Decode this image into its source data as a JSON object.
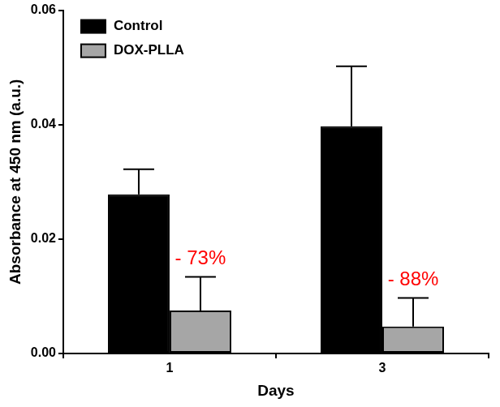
{
  "chart_data": {
    "type": "bar",
    "x_label": "Days",
    "y_label": "Absorbance at 450 nm (a.u.)",
    "categories": [
      "1",
      "3"
    ],
    "series": [
      {
        "name": "Control",
        "color": "#000000",
        "values": [
          0.0278,
          0.0397
        ],
        "errors": [
          0.0044,
          0.0105
        ]
      },
      {
        "name": "DOX-PLLA",
        "color": "#a6a6a6",
        "values": [
          0.0075,
          0.0047
        ],
        "errors": [
          0.0059,
          0.005
        ]
      }
    ],
    "annotations": [
      {
        "series": "DOX-PLLA",
        "category": "1",
        "text": "- 73%",
        "color": "#ff0000"
      },
      {
        "series": "DOX-PLLA",
        "category": "3",
        "text": "- 88%",
        "color": "#ff0000"
      }
    ],
    "ylim": [
      0,
      0.06
    ],
    "yticks": [
      {
        "value": 0,
        "label": "0.00"
      },
      {
        "value": 0.02,
        "label": "0.02"
      },
      {
        "value": 0.04,
        "label": "0.04"
      },
      {
        "value": 0.06,
        "label": "0.06"
      }
    ],
    "grid": false,
    "legend": "upper left"
  }
}
